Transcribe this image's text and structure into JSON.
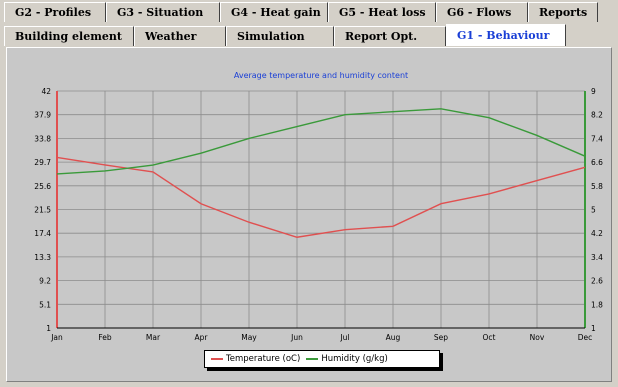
{
  "tabs_row1": [
    {
      "label": "G2 - Profiles",
      "width": 102
    },
    {
      "label": "G3 - Situation",
      "width": 114
    },
    {
      "label": "G4 - Heat gain",
      "width": 108
    },
    {
      "label": "G5 - Heat loss",
      "width": 108
    },
    {
      "label": "G6 - Flows",
      "width": 92
    },
    {
      "label": "Reports",
      "width": 70
    }
  ],
  "tabs_row2": [
    {
      "label": "Building element",
      "width": 130,
      "active": false
    },
    {
      "label": "Weather",
      "width": 92,
      "active": false
    },
    {
      "label": "Simulation",
      "width": 108,
      "active": false
    },
    {
      "label": "Report Opt.",
      "width": 112,
      "active": false
    },
    {
      "label": "G1 - Behaviour",
      "width": 120,
      "active": true
    }
  ],
  "colors": {
    "temperature": "#e05050",
    "humidity": "#3a9a3a",
    "title": "#1a3fd6",
    "grid": "#8c8c8c"
  },
  "chart_data": {
    "type": "line",
    "title": "Average temperature and humidity content",
    "categories": [
      "Jan",
      "Feb",
      "Mar",
      "Apr",
      "May",
      "Jun",
      "Jul",
      "Aug",
      "Sep",
      "Oct",
      "Nov",
      "Dec"
    ],
    "y_left": {
      "ticks": [
        "42",
        "37.9",
        "33.8",
        "29.7",
        "25.6",
        "21.5",
        "17.4",
        "13.3",
        "9.2",
        "5.1",
        "1"
      ],
      "lim": [
        1,
        42
      ]
    },
    "y_right": {
      "ticks": [
        "9",
        "8.2",
        "7.4",
        "6.6",
        "5.8",
        "5",
        "4.2",
        "3.4",
        "2.6",
        "1.8",
        "1"
      ],
      "lim": [
        1,
        9
      ]
    },
    "series": [
      {
        "name": "Temperature (oC)",
        "axis": "left",
        "values": [
          30.5,
          29.2,
          28.0,
          22.5,
          19.3,
          16.7,
          18.0,
          18.6,
          22.5,
          24.2,
          26.5,
          28.8
        ]
      },
      {
        "name": "Humidity (g/kg)",
        "axis": "right",
        "values": [
          6.2,
          6.3,
          6.5,
          6.9,
          7.4,
          7.8,
          8.2,
          8.3,
          8.4,
          8.1,
          7.5,
          6.8
        ]
      }
    ],
    "grid": true,
    "legend_position": "bottom-center"
  }
}
